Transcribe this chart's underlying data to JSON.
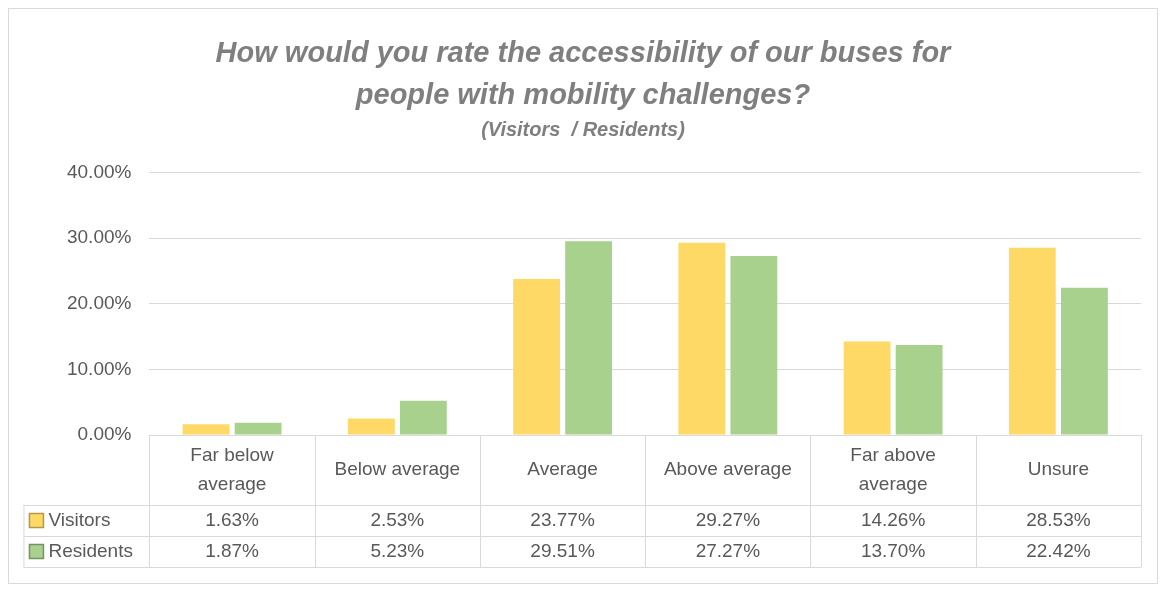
{
  "chart_data": {
    "type": "bar",
    "title": "How would you rate the accessibility of our buses for people with mobility challenges?",
    "subtitle": "(Visitors  / Residents)",
    "categories": [
      "Far below average",
      "Below average",
      "Average",
      "Above average",
      "Far above average",
      "Unsure"
    ],
    "series": [
      {
        "name": "Visitors",
        "color": "#ffd966",
        "values": [
          1.63,
          2.53,
          23.77,
          29.27,
          14.26,
          28.53
        ],
        "value_labels": [
          "1.63%",
          "2.53%",
          "23.77%",
          "29.27%",
          "14.26%",
          "28.53%"
        ]
      },
      {
        "name": "Residents",
        "color": "#a9d18e",
        "values": [
          1.87,
          5.23,
          29.51,
          27.27,
          13.7,
          22.42
        ],
        "value_labels": [
          "1.87%",
          "5.23%",
          "29.51%",
          "27.27%",
          "13.70%",
          "22.42%"
        ]
      }
    ],
    "ylim": [
      0,
      40
    ],
    "yticks": [
      {
        "value": 0,
        "label": "0.00%"
      },
      {
        "value": 10,
        "label": "10.00%"
      },
      {
        "value": 20,
        "label": "20.00%"
      },
      {
        "value": 30,
        "label": "30.00%"
      },
      {
        "value": 40,
        "label": "40.00%"
      }
    ],
    "grid": "y",
    "legend": "bottom"
  }
}
